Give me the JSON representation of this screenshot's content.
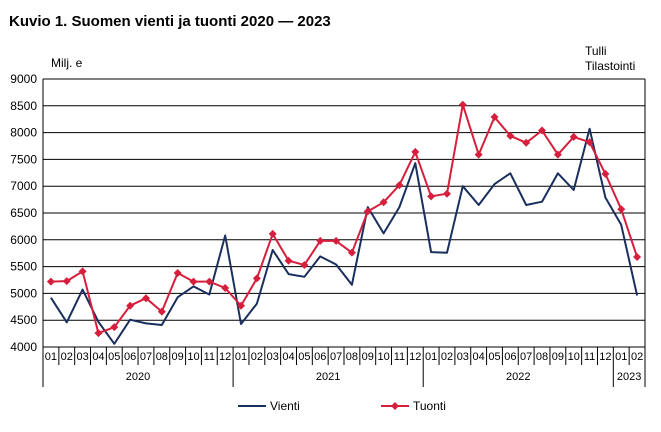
{
  "chart_data": {
    "type": "line",
    "title": "Kuvio 1. Suomen vienti ja tuonti 2020 — 2023",
    "source": [
      "Tulli",
      "Tilastointi"
    ],
    "ylabel": "Milj. e",
    "ylim": [
      4000,
      9000
    ],
    "yticks": [
      4000,
      4500,
      5000,
      5500,
      6000,
      6500,
      7000,
      7500,
      8000,
      8500,
      9000
    ],
    "grid": true,
    "legend_position": "bottom",
    "months": [
      "01",
      "02",
      "03",
      "04",
      "05",
      "06",
      "07",
      "08",
      "09",
      "10",
      "11",
      "12",
      "01",
      "02",
      "03",
      "04",
      "05",
      "06",
      "07",
      "08",
      "09",
      "10",
      "11",
      "12",
      "01",
      "02",
      "03",
      "04",
      "05",
      "06",
      "07",
      "08",
      "09",
      "10",
      "11",
      "12",
      "01",
      "02"
    ],
    "years": [
      {
        "label": "2020",
        "count": 12
      },
      {
        "label": "2021",
        "count": 12
      },
      {
        "label": "2022",
        "count": 12
      },
      {
        "label": "2023",
        "count": 2
      }
    ],
    "series": [
      {
        "name": "Vienti",
        "color": "#1a2f5e",
        "marker": "none",
        "values": [
          4920,
          4460,
          5070,
          4470,
          4060,
          4510,
          4440,
          4410,
          4930,
          5130,
          4980,
          6080,
          4430,
          4810,
          5810,
          5360,
          5310,
          5690,
          5540,
          5160,
          6610,
          6120,
          6610,
          7430,
          5770,
          5760,
          7000,
          6650,
          7040,
          7240,
          6650,
          6710,
          7240,
          6930,
          8070,
          6790,
          6280,
          4960
        ]
      },
      {
        "name": "Tuonti",
        "color": "#d61f3c",
        "marker": "diamond",
        "values": [
          5220,
          5230,
          5410,
          4260,
          4370,
          4770,
          4910,
          4660,
          5380,
          5220,
          5220,
          5100,
          4770,
          5280,
          6110,
          5610,
          5530,
          5980,
          5980,
          5760,
          6530,
          6700,
          7020,
          7640,
          6810,
          6860,
          8520,
          7590,
          8290,
          7940,
          7810,
          8040,
          7590,
          7920,
          7820,
          7230,
          6570,
          5680
        ]
      }
    ]
  }
}
